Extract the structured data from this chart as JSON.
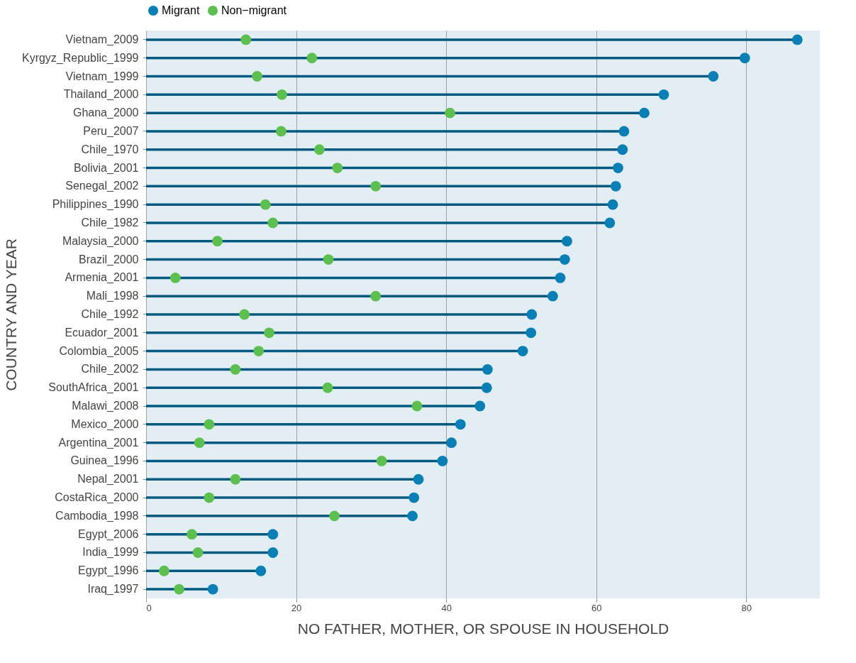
{
  "chart_data": {
    "type": "lollipop",
    "xlabel": "NO FATHER, MOTHER, OR SPOUSE IN HOUSEHOLD",
    "ylabel": "COUNTRY AND YEAR",
    "categories": [
      "Vietnam_2009",
      "Kyrgyz_Republic_1999",
      "Vietnam_1999",
      "Thailand_2000",
      "Ghana_2000",
      "Peru_2007",
      "Chile_1970",
      "Bolivia_2001",
      "Senegal_2002",
      "Philippines_1990",
      "Chile_1982",
      "Malaysia_2000",
      "Brazil_2000",
      "Armenia_2001",
      "Mali_1998",
      "Chile_1992",
      "Ecuador_2001",
      "Colombia_2005",
      "Chile_2002",
      "SouthAfrica_2001",
      "Malawi_2008",
      "Mexico_2000",
      "Argentina_2001",
      "Guinea_1996",
      "Nepal_2001",
      "CostaRica_2000",
      "Cambodia_1998",
      "Egypt_2006",
      "India_1999",
      "Egypt_1996",
      "Iraq_1997"
    ],
    "series": [
      {
        "name": "Migrant",
        "color": "#0a7fb5",
        "values": [
          86.8,
          79.8,
          75.6,
          69.0,
          66.4,
          63.7,
          63.5,
          62.9,
          62.6,
          62.2,
          61.8,
          56.1,
          55.8,
          55.2,
          54.2,
          51.4,
          51.3,
          50.2,
          45.5,
          45.4,
          44.5,
          41.9,
          40.7,
          39.5,
          36.3,
          35.7,
          35.5,
          16.9,
          16.9,
          15.3,
          8.9
        ]
      },
      {
        "name": "Non−migrant",
        "type": "scatter",
        "color": "#5cbf50",
        "values": [
          13.3,
          22.1,
          14.8,
          18.1,
          40.5,
          18.0,
          23.1,
          25.5,
          30.6,
          15.9,
          16.9,
          9.5,
          24.3,
          3.9,
          30.6,
          13.1,
          16.4,
          15.0,
          11.9,
          24.2,
          36.1,
          8.4,
          7.1,
          31.4,
          11.9,
          8.4,
          25.1,
          6.1,
          6.9,
          2.4,
          4.4
        ]
      }
    ],
    "orientation": "horizontal",
    "xlim": [
      0,
      89.8
    ],
    "xticks": [
      0,
      20,
      40,
      60,
      80
    ],
    "grid": "x",
    "legend": "top",
    "marker": "circle"
  }
}
